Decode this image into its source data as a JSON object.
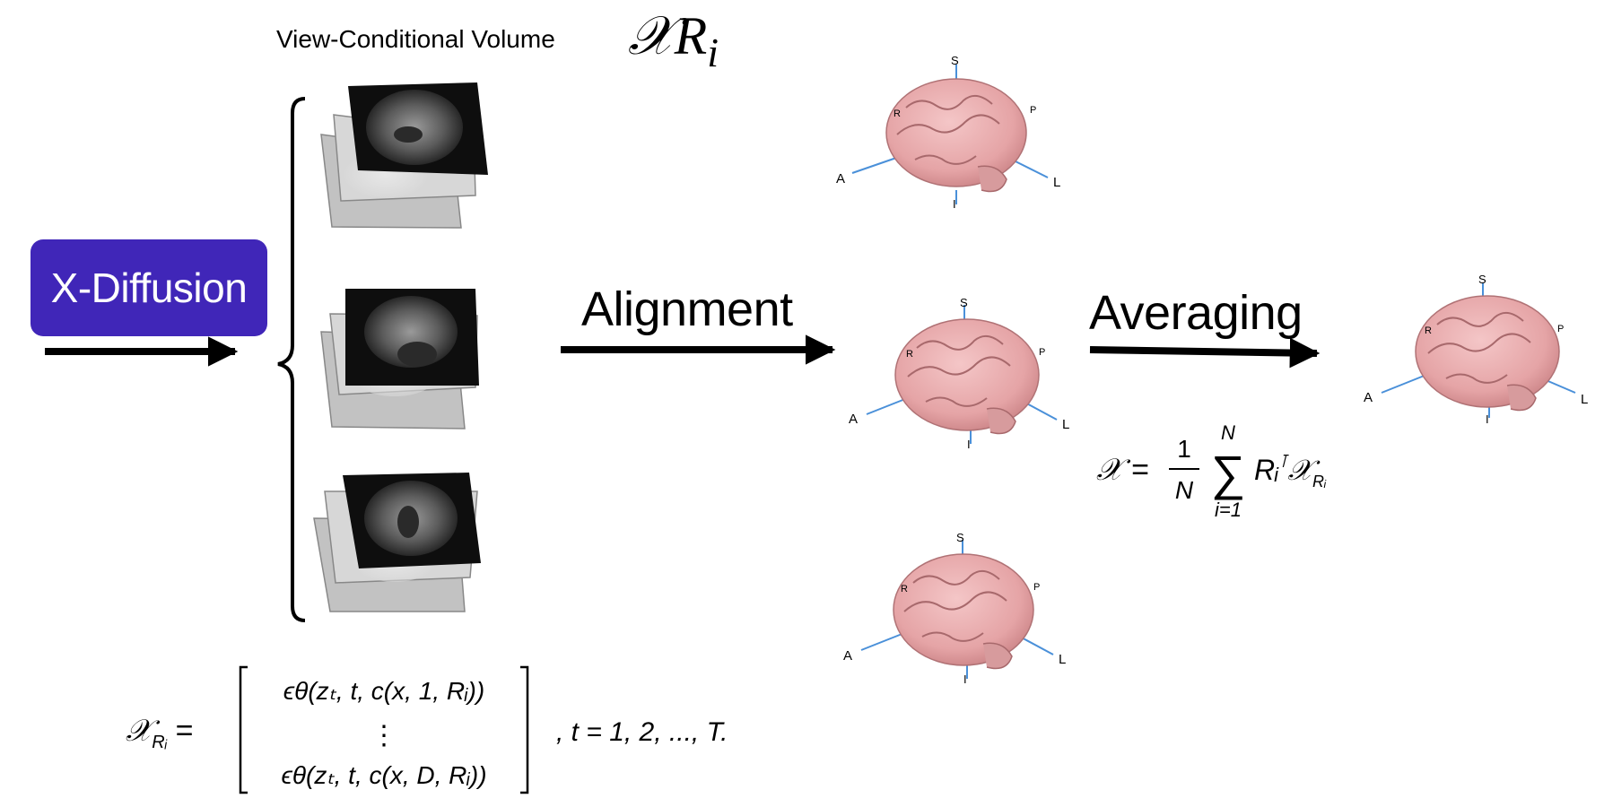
{
  "header": {
    "volume_label": "View-Conditional Volume",
    "volume_symbol": "𝒳R",
    "volume_subscript": "i"
  },
  "model": {
    "label": "X-Diffusion"
  },
  "steps": {
    "alignment": "Alignment",
    "averaging": "Averaging"
  },
  "brain_axes": {
    "superior": "S",
    "inferior": "I",
    "anterior": "A",
    "posterior": "P",
    "right": "R",
    "left": "L"
  },
  "equations": {
    "volume_lhs": "𝒳",
    "volume_lhs_sub": "Rᵢ",
    "volume_row_first": "ϵθ(zₜ, t, c(x, 1, Rᵢ))",
    "volume_row_ellipsis": "⋮",
    "volume_row_last": "ϵθ(zₜ, t, c(x, D, Rᵢ))",
    "volume_range": ",   t = 1, 2, ..., T.",
    "average_lhs": "𝒳 =",
    "average_frac_num": "1",
    "average_frac_den": "N",
    "average_sum_top": "N",
    "average_sum_bottom": "i=1",
    "average_term": "Rᵢ",
    "average_term_sup": "⊺",
    "average_term_x": "𝒳",
    "average_term_x_sub": "Rᵢ"
  },
  "colors": {
    "model_box": "#4026b8",
    "brain_fill": "#e8a9ab",
    "axis_line": "#4a90d9",
    "slice_dark": "#0e0e0e",
    "slice_gray": "#bdbdbd"
  }
}
